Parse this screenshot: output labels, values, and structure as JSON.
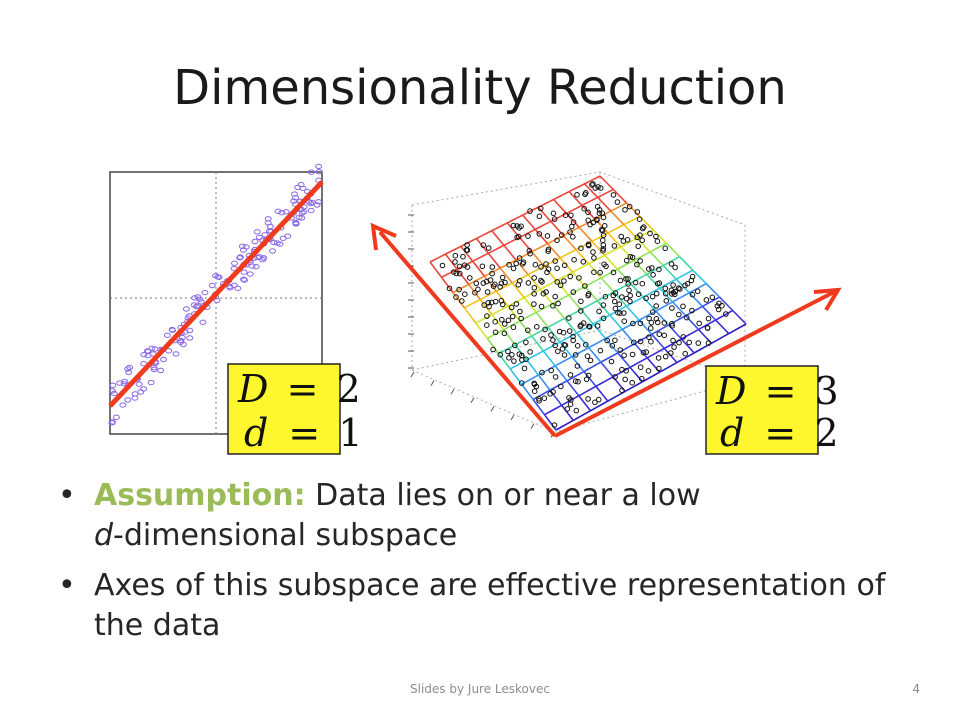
{
  "slide": {
    "title": "Dimensionality Reduction",
    "footer": "Slides by Jure Leskovec",
    "page_number": "4"
  },
  "figure_left": {
    "label_D_var": "D",
    "label_D_val": "2",
    "label_d_var": "d",
    "label_d_val": "1",
    "eq": "=",
    "colors": {
      "points": "#8a6be6",
      "line": "#f03a1e",
      "label_bg": "#fff72e"
    }
  },
  "figure_right": {
    "label_D_var": "D",
    "label_D_val": "3",
    "label_d_var": "d",
    "label_d_val": "2",
    "eq": "=",
    "colors": {
      "arrows": "#f03a1e",
      "label_bg": "#fff72e"
    }
  },
  "bullets": [
    {
      "lead": "Assumption:",
      "text_a": " Data lies on or near a low ",
      "italic": "d",
      "text_b": "-dimensional subspace"
    },
    {
      "text": "Axes of this subspace are effective representation of the data"
    }
  ],
  "colors": {
    "accent": "#9bbb59"
  }
}
